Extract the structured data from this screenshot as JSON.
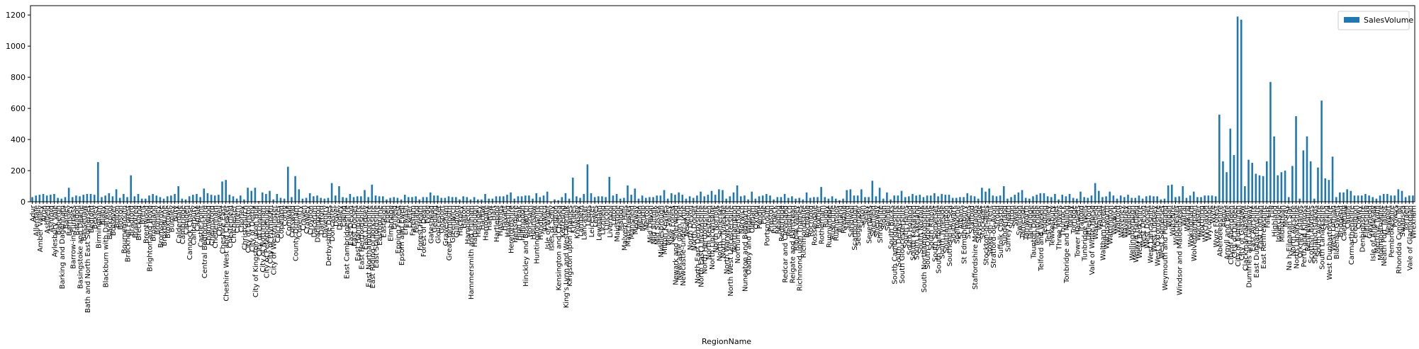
{
  "chart_data": {
    "type": "bar",
    "xlabel": "RegionName",
    "legend": "upper right",
    "ylim": [
      0,
      1260
    ],
    "yticks": [
      0,
      200,
      400,
      600,
      800,
      1000,
      1200
    ],
    "categories": [
      "Adur",
      "Allerdale",
      "Amber Valley",
      "Arun",
      "Ashfield",
      "Ashford",
      "Aylesbury Vale",
      "Babergh",
      "Barking and Dagenham",
      "Barnet",
      "Barnsley",
      "Barrow-in-Furness",
      "Basildon",
      "Basingstoke and Deane",
      "Bassetlaw",
      "Bath and North East Somerset",
      "Bedford",
      "Bexley",
      "Birmingham",
      "Blaby",
      "Blackburn with Darwen",
      "Blackpool",
      "Bolsover",
      "Bolton",
      "Boston",
      "Bournemouth",
      "Bracknell Forest",
      "Bradford",
      "Braintree",
      "Breckland",
      "Brent",
      "Brentwood",
      "Brighton and Hove",
      "Broadland",
      "Bromley",
      "Bromsgrove",
      "Broxbourne",
      "Broxtowe",
      "Burnley",
      "Bury",
      "Calderdale",
      "Cambridge",
      "Camden",
      "Cannock Chase",
      "Canterbury",
      "Carlisle",
      "Castle Point",
      "Central Bedfordshire",
      "Charnwood",
      "Chelmsford",
      "Cheltenham",
      "Cherwell",
      "Cheshire East",
      "Cheshire West and Chester",
      "Chesterfield",
      "Chichester",
      "Chiltern",
      "Chorley",
      "Christchurch",
      "City of Bristol",
      "City of Derby",
      "City of Kingston upon Hull",
      "City of London",
      "City of Nottingham",
      "City of Peterborough",
      "City of Plymouth",
      "City of Westminster",
      "Colchester",
      "Copeland",
      "Corby",
      "Cornwall",
      "Cotswold",
      "County Durham",
      "Coventry",
      "Craven",
      "Crawley",
      "Croydon",
      "Dacorum",
      "Darlington",
      "Dartford",
      "Daventry",
      "Derbyshire Dales",
      "Doncaster",
      "Dover",
      "Dudley",
      "Ealing",
      "East Cambridgeshire",
      "East Devon",
      "East Dorset",
      "East Hampshire",
      "East Hertfordshire",
      "East Lindsey",
      "East Northamptonshire",
      "East Riding of Yorkshire",
      "East Staffordshire",
      "Eastbourne",
      "Eastleigh",
      "Eden",
      "Elmbridge",
      "Enfield",
      "Epping Forest",
      "Epsom and Ewell",
      "Erewash",
      "Exeter",
      "Fareham",
      "Fenland",
      "Forest Heath",
      "Forest of Dean",
      "Fylde",
      "Gateshead",
      "Gedling",
      "Gloucester",
      "Gosport",
      "Gravesham",
      "Great Yarmouth",
      "Greenwich",
      "Guildford",
      "Hackney",
      "Halton",
      "Hambleton",
      "Hammersmith and Fulham",
      "Harborough",
      "Haringey",
      "Harlow",
      "Harrogate",
      "Harrow",
      "Hart",
      "Hartlepool",
      "Hastings",
      "Havant",
      "Havering",
      "Herefordshire",
      "Hertsmere",
      "High Peak",
      "Hillingdon",
      "Hinckley and Bosworth",
      "Horsham",
      "Hounslow",
      "Huntingdonshire",
      "Hyndburn",
      "Ipswich",
      "Isle of Wight",
      "Isles of Scilly",
      "Islington",
      "Kensington and Chelsea",
      "Kettering",
      "King's Lynn and West Norfolk",
      "Kingston upon Thames",
      "Kirklees",
      "Knowsley",
      "Lambeth",
      "Lancaster",
      "Leeds",
      "Leicester",
      "Lewes",
      "Lewisham",
      "Lichfield",
      "Lincoln",
      "Liverpool",
      "Luton",
      "Maidstone",
      "Maldon",
      "Malvern Hills",
      "Manchester",
      "Mansfield",
      "Medway",
      "Melton",
      "Mendip",
      "Merton",
      "Mid Devon",
      "Mid Suffolk",
      "Mid Sussex",
      "Middlesbrough",
      "Milton Keynes",
      "Mole Valley",
      "New Forest",
      "Newark and Sherwood",
      "Newcastle upon Tyne",
      "Newcastle-under-Lyme",
      "Newham",
      "North Devon",
      "North Dorset",
      "North East Derbyshire",
      "North East Lincolnshire",
      "North Hertfordshire",
      "North Kesteven",
      "North Lincolnshire",
      "North Norfolk",
      "North Somerset",
      "North Tyneside",
      "North Warwickshire",
      "North West Leicestershire",
      "Northampton",
      "Northumberland",
      "Norwich",
      "Nuneaton and Bedworth",
      "Oadby and Wigston",
      "Oldham",
      "Oxford",
      "Pendle",
      "Poole",
      "Portsmouth",
      "Preston",
      "Purbeck",
      "Reading",
      "Redbridge",
      "Redcar and Cleveland",
      "Redditch",
      "Reigate and Banstead",
      "Ribble Valley",
      "Richmond upon Thames",
      "Richmondshire",
      "Rochdale",
      "Rochford",
      "Rossendale",
      "Rother",
      "Rotherham",
      "Rugby",
      "Runnymede",
      "Rushcliffe",
      "Rushmoor",
      "Rutland",
      "Ryedale",
      "Salford",
      "Sandwell",
      "Scarborough",
      "Sedgemoor",
      "Sefton",
      "Selby",
      "Sevenoaks",
      "Sheffield",
      "Shepway",
      "Shropshire",
      "Slough",
      "Solihull",
      "South Bucks",
      "South Cambridgeshire",
      "South Derbyshire",
      "South Gloucestershire",
      "South Hams",
      "South Holland",
      "South Kesteven",
      "South Lakeland",
      "South Norfolk",
      "South Northamptonshire",
      "South Oxfordshire",
      "South Ribble",
      "South Somerset",
      "South Staffordshire",
      "South Tyneside",
      "Southampton",
      "Southend-on-Sea",
      "Southwark",
      "Spelthorne",
      "St Albans",
      "St Edmundsbury",
      "St Helens",
      "Stafford",
      "Staffordshire Moorlands",
      "Stevenage",
      "Stockport",
      "Stockton-on-Tees",
      "Stoke-on-Trent",
      "Stratford-on-Avon",
      "Stroud",
      "Suffolk Coastal",
      "Sunderland",
      "Surrey Heath",
      "Sutton",
      "Swale",
      "Swindon",
      "Tameside",
      "Tamworth",
      "Tandridge",
      "Taunton Deane",
      "Teignbridge",
      "Telford and Wrekin",
      "Tendring",
      "Test Valley",
      "Tewkesbury",
      "Thanet",
      "Three Rivers",
      "Thurrock",
      "Tonbridge and Malling",
      "Torbay",
      "Torridge",
      "Tower Hamlets",
      "Trafford",
      "Tunbridge Wells",
      "Uttlesford",
      "Vale of White Horse",
      "Wakefield",
      "Walsall",
      "Waltham Forest",
      "Wandsworth",
      "Warrington",
      "Warwick",
      "Watford",
      "Waveney",
      "Waverley",
      "Wealden",
      "Wellingborough",
      "Welwyn Hatfield",
      "West Berkshire",
      "West Devon",
      "West Dorset",
      "West Lancashire",
      "West Lindsey",
      "West Oxfordshire",
      "West Somerset",
      "Weymouth and Portland",
      "Wigan",
      "Wiltshire",
      "Winchester",
      "Windsor and Maidenhead",
      "Wirral",
      "Woking",
      "Wokingham",
      "Wolverhampton",
      "Worcester",
      "Worthing",
      "Wychavon",
      "Wycombe",
      "Wyre",
      "Wyre Forest",
      "Aberdeenshire",
      "Angus",
      "Argyll and Bute",
      "City of Aberdeen",
      "City of Dundee",
      "City of Edinburgh",
      "City of Glasgow",
      "Clackmannanshire",
      "Dumfries and Galloway",
      "East Ayrshire",
      "East Dunbartonshire",
      "East Lothian",
      "East Renfrewshire",
      "Falkirk",
      "Fife",
      "Highland",
      "Inverclyde",
      "Midlothian",
      "Moray",
      "Na h-Eileanan Siar",
      "North Ayrshire",
      "North Lanarkshire",
      "Orkney Islands",
      "Perth and Kinross",
      "Renfrewshire",
      "Scottish Borders",
      "Shetland Islands",
      "South Ayrshire",
      "South Lanarkshire",
      "Stirling",
      "West Dunbartonshire",
      "West Lothian",
      "Blaenau Gwent",
      "Bridgend",
      "Caerphilly",
      "Cardiff",
      "Carmarthenshire",
      "Ceredigion",
      "Conwy",
      "Denbighshire",
      "Flintshire",
      "Gwynedd",
      "Isle of Anglesey",
      "Merthyr Tydfil",
      "Monmouthshire",
      "Neath Port Talbot",
      "Newport",
      "Pembrokeshire",
      "Powys",
      "Rhondda Cynon Taf",
      "Swansea",
      "Torfaen",
      "Vale of Glamorgan",
      "Wrexham"
    ],
    "series": [
      {
        "name": "SalesVolume",
        "color": "#1f77b4",
        "values": [
          30,
          40,
          45,
          50,
          40,
          45,
          50,
          25,
          20,
          30,
          90,
          30,
          40,
          35,
          45,
          50,
          50,
          45,
          255,
          30,
          40,
          55,
          35,
          80,
          25,
          50,
          30,
          170,
          35,
          50,
          20,
          20,
          40,
          50,
          40,
          30,
          20,
          35,
          40,
          50,
          100,
          20,
          15,
          35,
          45,
          50,
          30,
          85,
          55,
          45,
          40,
          45,
          130,
          140,
          45,
          35,
          20,
          40,
          15,
          90,
          70,
          90,
          5,
          60,
          50,
          70,
          15,
          50,
          25,
          20,
          225,
          30,
          165,
          80,
          20,
          25,
          55,
          35,
          40,
          25,
          20,
          25,
          120,
          40,
          100,
          30,
          25,
          50,
          30,
          35,
          35,
          75,
          30,
          110,
          40,
          35,
          35,
          15,
          25,
          30,
          25,
          15,
          45,
          30,
          30,
          35,
          15,
          30,
          30,
          60,
          40,
          40,
          25,
          25,
          35,
          30,
          30,
          15,
          35,
          30,
          15,
          30,
          15,
          15,
          50,
          20,
          20,
          35,
          35,
          35,
          45,
          60,
          20,
          35,
          35,
          40,
          40,
          20,
          55,
          30,
          40,
          65,
          1,
          15,
          10,
          30,
          55,
          20,
          155,
          35,
          25,
          50,
          240,
          55,
          30,
          35,
          35,
          30,
          160,
          40,
          50,
          20,
          25,
          105,
          45,
          85,
          20,
          40,
          25,
          30,
          30,
          40,
          40,
          75,
          20,
          55,
          45,
          60,
          45,
          20,
          35,
          25,
          40,
          65,
          35,
          45,
          70,
          45,
          80,
          75,
          20,
          35,
          60,
          105,
          35,
          40,
          15,
          65,
          20,
          35,
          40,
          50,
          40,
          15,
          30,
          30,
          50,
          25,
          35,
          20,
          25,
          15,
          60,
          25,
          30,
          30,
          95,
          30,
          20,
          35,
          20,
          10,
          20,
          75,
          80,
          40,
          40,
          80,
          30,
          30,
          135,
          35,
          90,
          20,
          60,
          15,
          40,
          40,
          70,
          30,
          35,
          50,
          40,
          45,
          30,
          40,
          40,
          55,
          35,
          50,
          45,
          45,
          25,
          25,
          30,
          30,
          55,
          40,
          35,
          20,
          90,
          65,
          85,
          40,
          35,
          40,
          100,
          20,
          30,
          45,
          60,
          75,
          25,
          20,
          35,
          45,
          55,
          55,
          35,
          30,
          50,
          15,
          45,
          35,
          50,
          25,
          20,
          65,
          30,
          25,
          40,
          120,
          70,
          30,
          35,
          65,
          40,
          20,
          40,
          30,
          45,
          25,
          25,
          40,
          20,
          35,
          40,
          35,
          35,
          15,
          20,
          105,
          110,
          30,
          35,
          100,
          25,
          40,
          65,
          30,
          30,
          40,
          40,
          40,
          35,
          560,
          260,
          190,
          470,
          300,
          1190,
          1170,
          100,
          270,
          250,
          180,
          170,
          165,
          260,
          770,
          420,
          170,
          190,
          200,
          30,
          230,
          550,
          20,
          330,
          420,
          260,
          20,
          220,
          650,
          150,
          140,
          290,
          30,
          60,
          60,
          80,
          70,
          40,
          40,
          40,
          50,
          40,
          30,
          20,
          40,
          50,
          50,
          40,
          40,
          80,
          70,
          30,
          40,
          40
        ]
      }
    ]
  }
}
